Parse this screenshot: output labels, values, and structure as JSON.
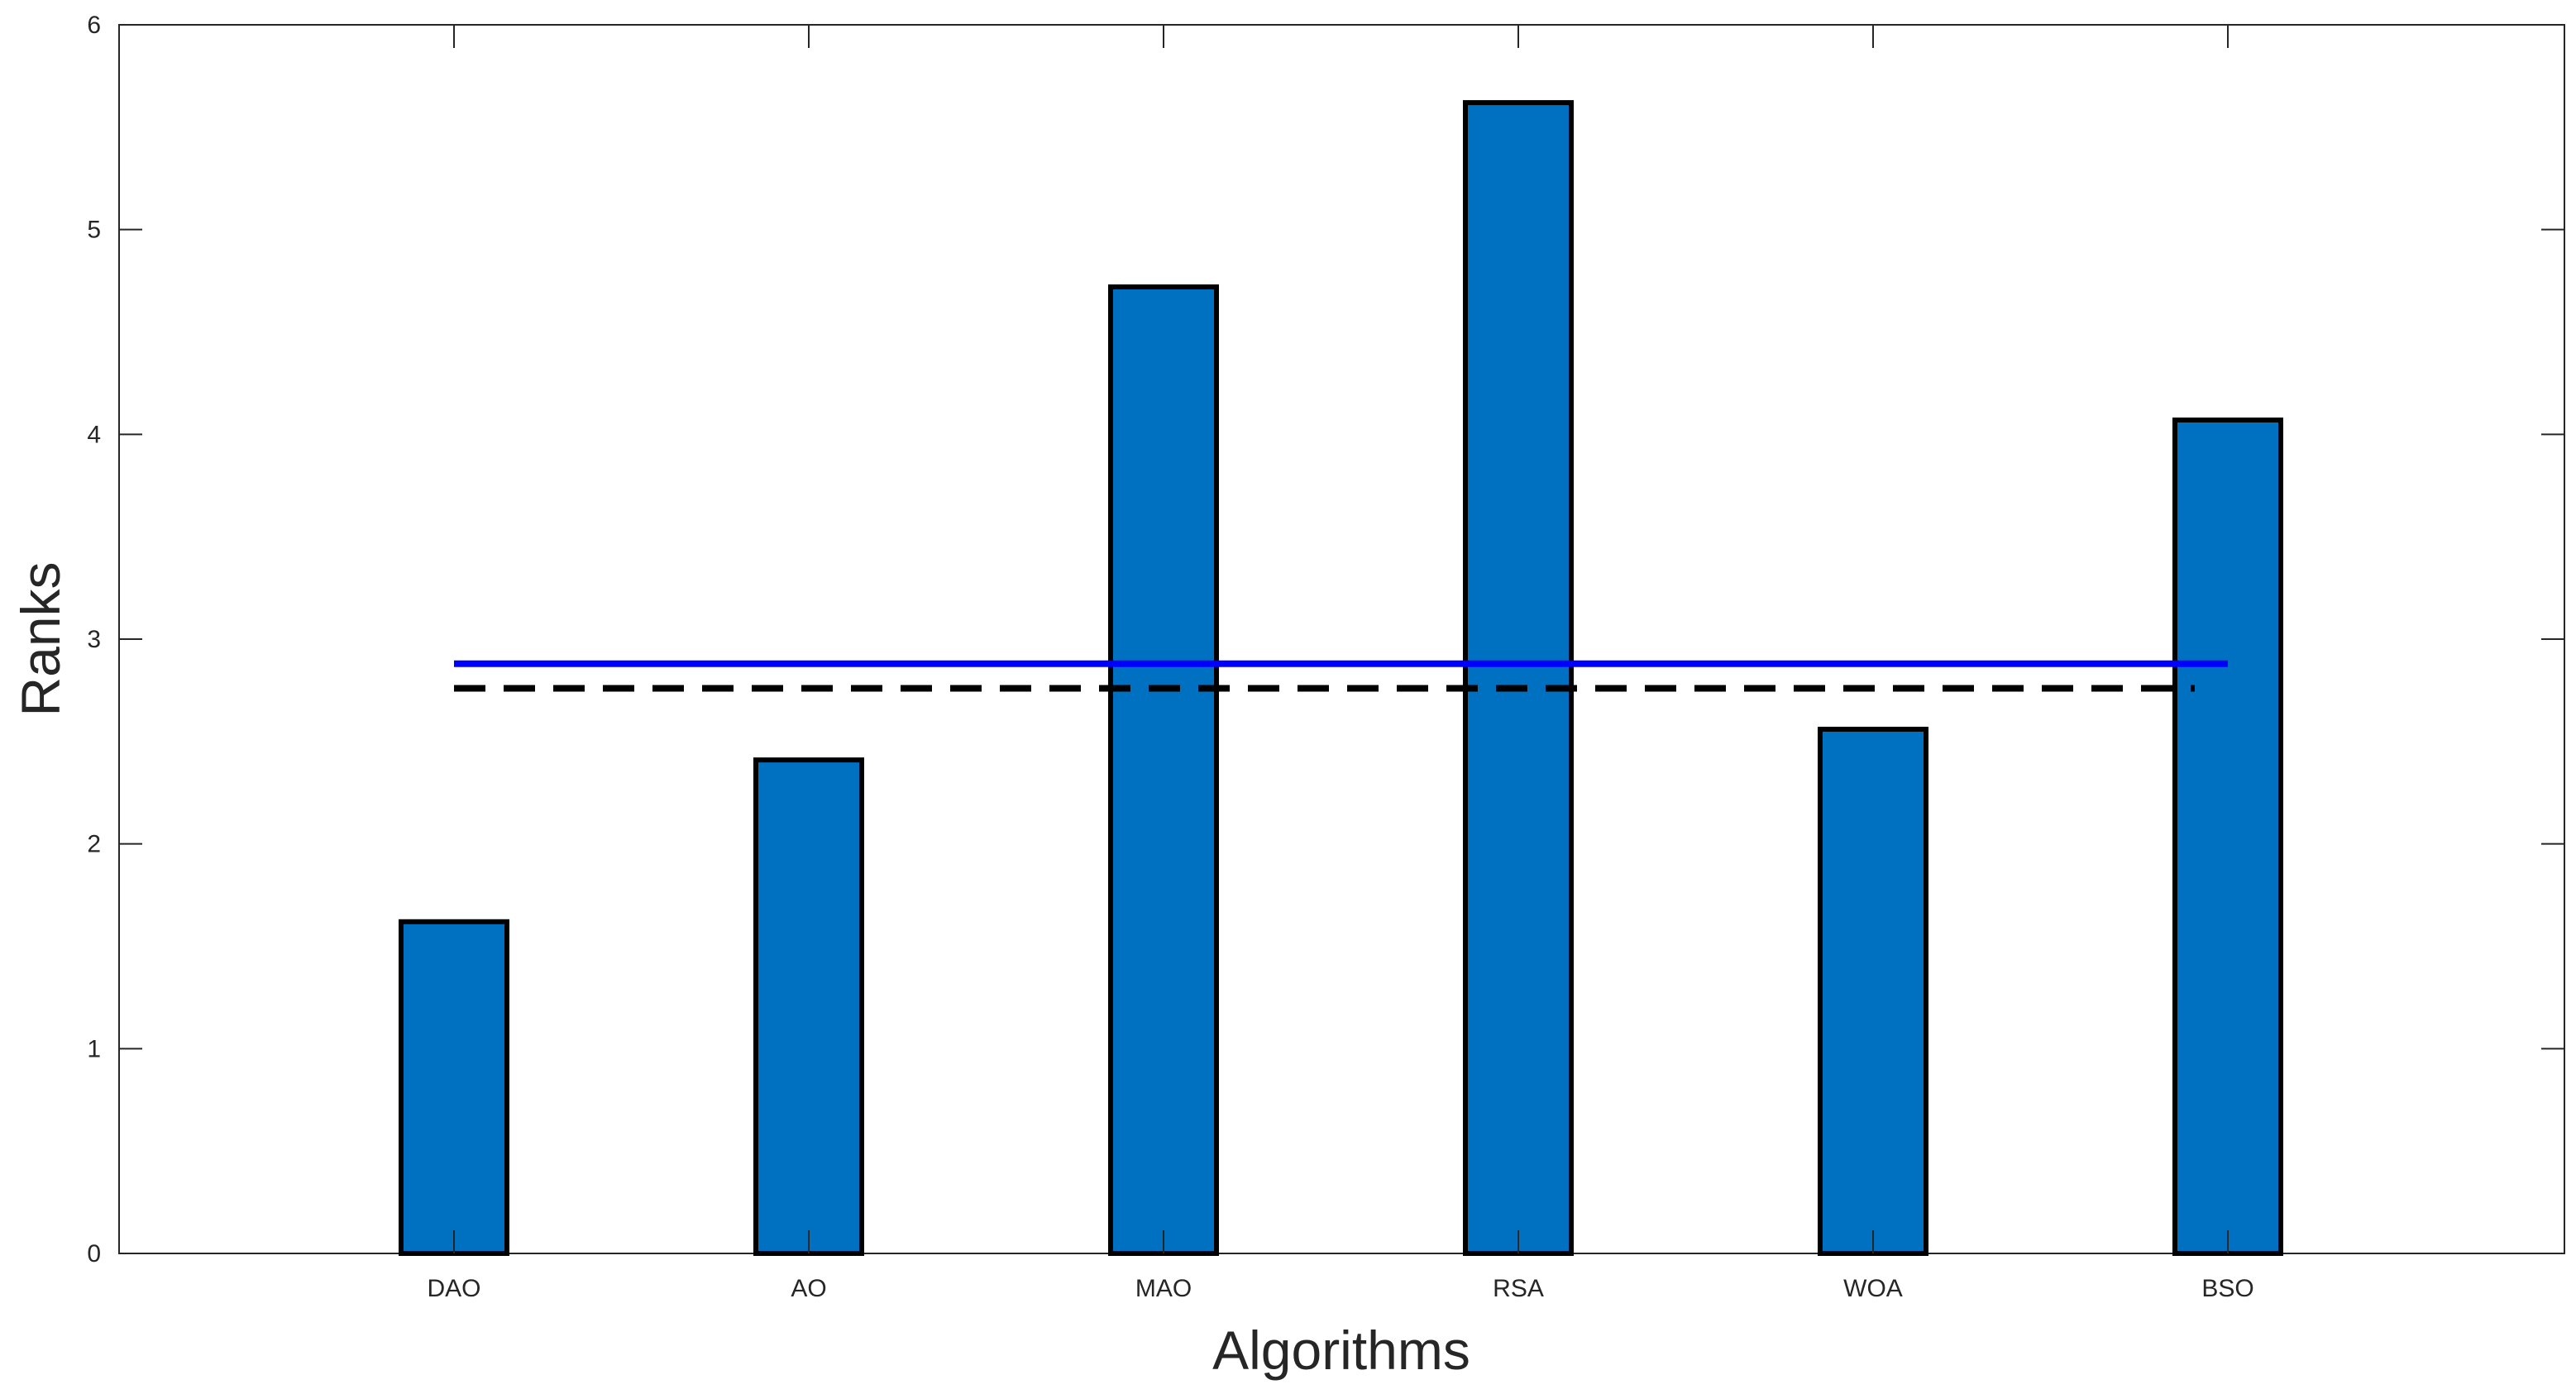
{
  "chart_data": {
    "type": "bar",
    "xlabel": "Algorithms",
    "ylabel": "Ranks",
    "categories": [
      "DAO",
      "AO",
      "MAO",
      "RSA",
      "WOA",
      "BSO"
    ],
    "values": [
      1.62,
      2.41,
      4.72,
      5.62,
      2.56,
      4.07
    ],
    "ylim": [
      0,
      6
    ],
    "yticks": [
      "0",
      "1",
      "2",
      "3",
      "4",
      "5",
      "6"
    ],
    "grid": false,
    "bar_color": "#0070c0",
    "bar_edge_color": "#000000",
    "reference_lines": [
      {
        "value": 2.88,
        "color": "#0000ff",
        "style": "solid"
      },
      {
        "value": 2.76,
        "color": "#000000",
        "style": "dashed"
      }
    ]
  }
}
